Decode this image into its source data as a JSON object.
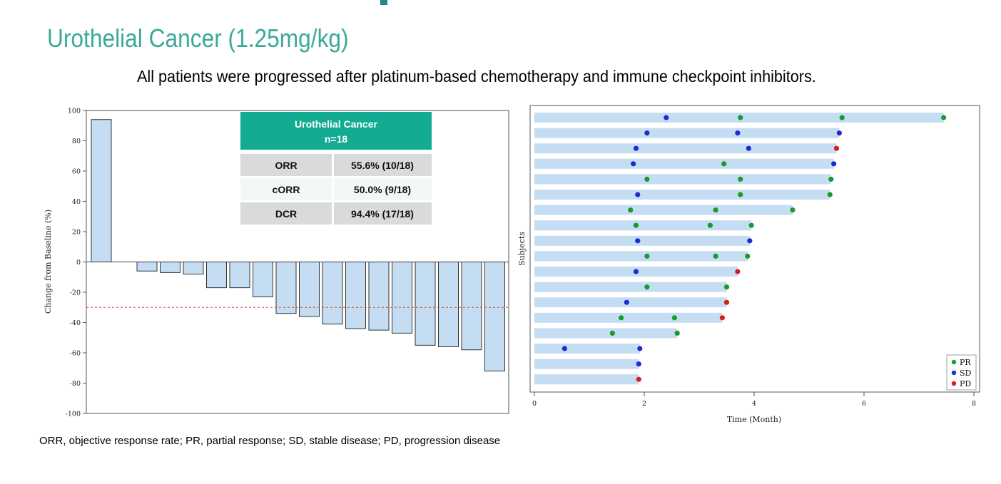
{
  "header": {
    "title": "Urothelial Cancer (1.25mg/kg)",
    "subtitle": "All patients were progressed after platinum-based chemotherapy and immune checkpoint inhibitors."
  },
  "footnote": "ORR, objective response rate; PR, partial response; SD, stable disease; PD, progression disease",
  "colors": {
    "bar_fill": "#c5ddf3",
    "swim_fill": "#c5ddf3",
    "table_header": "#13ab92",
    "table_row": "#d9dadb",
    "table_row_alt": "#f4f7f8",
    "threshold": "#e0453a",
    "PR": "#1a9a2a",
    "SD": "#1c2bd6",
    "PD": "#d91d1d",
    "title": "#3aa99a"
  },
  "table": {
    "header_line1": "Urothelial Cancer",
    "header_line2": "n=18",
    "rows": [
      {
        "label": "ORR",
        "value": "55.6% (10/18)"
      },
      {
        "label": "cORR",
        "value": "50.0% (9/18)"
      },
      {
        "label": "DCR",
        "value": "94.4% (17/18)"
      }
    ]
  },
  "chart_data": [
    {
      "type": "bar",
      "ylabel": "Change from Baseline (%)",
      "ylim": [
        -100,
        100
      ],
      "yticks": [
        100,
        80,
        60,
        40,
        20,
        0,
        -20,
        -40,
        -60,
        -80,
        -100
      ],
      "reference_line": -30,
      "values": [
        94,
        -6,
        -7,
        -8,
        -17,
        -17,
        -23,
        -34,
        -36,
        -41,
        -44,
        -45,
        -47,
        -55,
        -56,
        -58,
        -72
      ],
      "grid": false
    },
    {
      "type": "scatter",
      "subtype": "swimmer",
      "xlabel": "Time (Month)",
      "ylabel": "Subjects",
      "xlim": [
        0,
        8
      ],
      "xticks": [
        0,
        2,
        4,
        6,
        8
      ],
      "legend": {
        "placement": "bottom-right",
        "entries": [
          {
            "key": "PR",
            "label": "PR"
          },
          {
            "key": "SD",
            "label": "SD"
          },
          {
            "key": "PD",
            "label": "PD"
          }
        ]
      },
      "subjects": [
        {
          "end": 7.45,
          "events": [
            {
              "t": 2.4,
              "r": "SD"
            },
            {
              "t": 3.75,
              "r": "PR"
            },
            {
              "t": 5.6,
              "r": "PR"
            },
            {
              "t": 7.45,
              "r": "PR"
            }
          ]
        },
        {
          "end": 5.55,
          "events": [
            {
              "t": 2.05,
              "r": "SD"
            },
            {
              "t": 3.7,
              "r": "SD"
            },
            {
              "t": 5.55,
              "r": "SD"
            }
          ]
        },
        {
          "end": 5.5,
          "events": [
            {
              "t": 1.85,
              "r": "SD"
            },
            {
              "t": 3.9,
              "r": "SD"
            },
            {
              "t": 5.5,
              "r": "PD"
            }
          ]
        },
        {
          "end": 5.45,
          "events": [
            {
              "t": 1.8,
              "r": "SD"
            },
            {
              "t": 3.45,
              "r": "PR"
            },
            {
              "t": 5.45,
              "r": "SD"
            }
          ]
        },
        {
          "end": 5.4,
          "events": [
            {
              "t": 2.05,
              "r": "PR"
            },
            {
              "t": 3.75,
              "r": "PR"
            },
            {
              "t": 5.4,
              "r": "PR"
            }
          ]
        },
        {
          "end": 5.38,
          "events": [
            {
              "t": 1.88,
              "r": "SD"
            },
            {
              "t": 3.75,
              "r": "PR"
            },
            {
              "t": 5.38,
              "r": "PR"
            }
          ]
        },
        {
          "end": 4.7,
          "events": [
            {
              "t": 1.75,
              "r": "PR"
            },
            {
              "t": 3.3,
              "r": "PR"
            },
            {
              "t": 4.7,
              "r": "PR"
            }
          ]
        },
        {
          "end": 3.95,
          "events": [
            {
              "t": 1.85,
              "r": "PR"
            },
            {
              "t": 3.2,
              "r": "PR"
            },
            {
              "t": 3.95,
              "r": "PR"
            }
          ]
        },
        {
          "end": 3.92,
          "events": [
            {
              "t": 1.88,
              "r": "SD"
            },
            {
              "t": 3.92,
              "r": "SD"
            }
          ]
        },
        {
          "end": 3.88,
          "events": [
            {
              "t": 2.05,
              "r": "PR"
            },
            {
              "t": 3.3,
              "r": "PR"
            },
            {
              "t": 3.88,
              "r": "PR"
            }
          ]
        },
        {
          "end": 3.7,
          "events": [
            {
              "t": 1.85,
              "r": "SD"
            },
            {
              "t": 3.7,
              "r": "PD"
            }
          ]
        },
        {
          "end": 3.5,
          "events": [
            {
              "t": 2.05,
              "r": "PR"
            },
            {
              "t": 3.5,
              "r": "PR"
            }
          ]
        },
        {
          "end": 3.5,
          "events": [
            {
              "t": 1.68,
              "r": "SD"
            },
            {
              "t": 3.5,
              "r": "PD"
            }
          ]
        },
        {
          "end": 3.42,
          "events": [
            {
              "t": 1.58,
              "r": "PR"
            },
            {
              "t": 2.55,
              "r": "PR"
            },
            {
              "t": 3.42,
              "r": "PD"
            }
          ]
        },
        {
          "end": 2.6,
          "events": [
            {
              "t": 1.42,
              "r": "PR"
            },
            {
              "t": 2.6,
              "r": "PR"
            }
          ]
        },
        {
          "end": 1.92,
          "events": [
            {
              "t": 0.55,
              "r": "SD"
            },
            {
              "t": 1.92,
              "r": "SD"
            }
          ]
        },
        {
          "end": 1.9,
          "events": [
            {
              "t": 1.9,
              "r": "SD"
            }
          ]
        },
        {
          "end": 1.9,
          "events": [
            {
              "t": 1.9,
              "r": "PD"
            }
          ]
        }
      ]
    }
  ]
}
